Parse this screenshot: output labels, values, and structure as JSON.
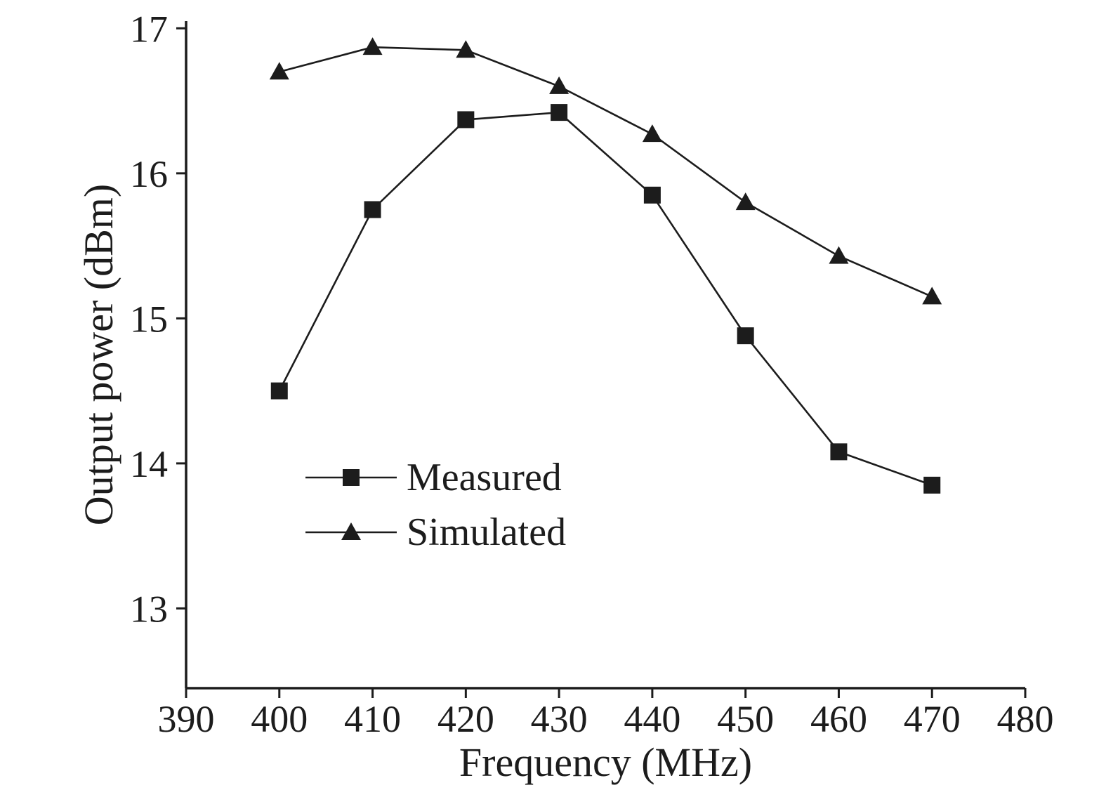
{
  "chart_data": {
    "type": "line",
    "title": "",
    "xlabel": "Frequency (MHz)",
    "ylabel": "Output power (dBm)",
    "xlim": [
      390,
      480
    ],
    "ylim": [
      12.45,
      17.05
    ],
    "xticks": [
      390,
      400,
      410,
      420,
      430,
      440,
      450,
      460,
      470,
      480
    ],
    "yticks": [
      13,
      14,
      15,
      16,
      17
    ],
    "grid": false,
    "legend_position": "inside-lower-left",
    "color": "#1c1c1c",
    "x": [
      400,
      410,
      420,
      430,
      440,
      450,
      460,
      470
    ],
    "series": [
      {
        "name": "Measured",
        "marker": "square",
        "values": [
          14.5,
          15.75,
          16.37,
          16.42,
          15.85,
          14.88,
          14.08,
          13.85
        ]
      },
      {
        "name": "Simulated",
        "marker": "triangle",
        "values": [
          16.7,
          16.87,
          16.85,
          16.6,
          16.27,
          15.8,
          15.43,
          15.15
        ]
      }
    ]
  }
}
